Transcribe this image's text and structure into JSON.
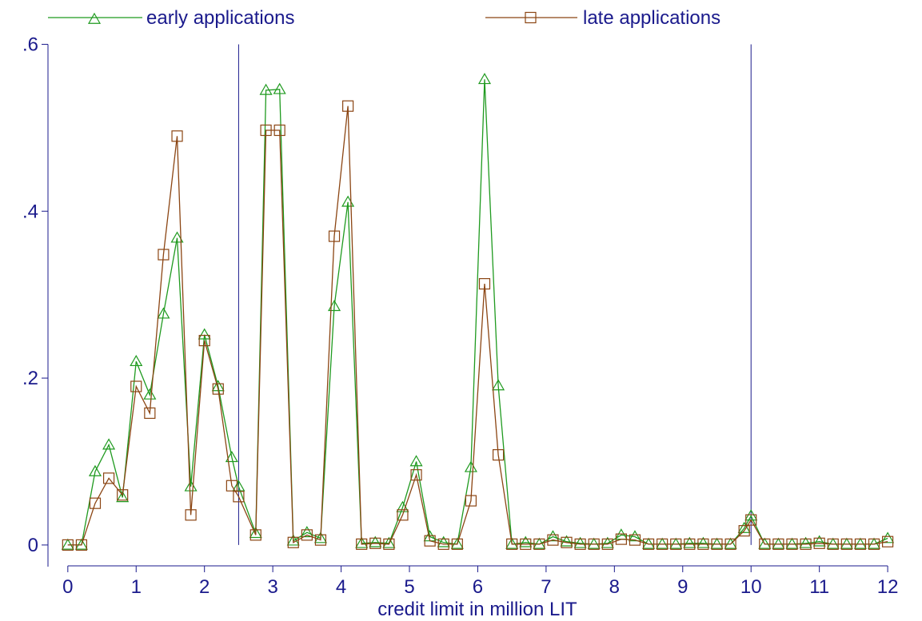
{
  "chart_data": {
    "type": "line",
    "xlabel": "credit limit in million LIT",
    "ylabel": "",
    "xlim": [
      -0.15,
      12.35
    ],
    "ylim": [
      -0.025,
      0.61
    ],
    "x_ticks": [
      "0",
      "1",
      "2",
      "3",
      "4",
      "5",
      "6",
      "7",
      "8",
      "9",
      "10",
      "11",
      "12"
    ],
    "y_ticks": [
      {
        "value": 0,
        "label": "0"
      },
      {
        "value": 0.2,
        "label": ".2"
      },
      {
        "value": 0.4,
        "label": ".4"
      },
      {
        "value": 0.6,
        "label": ".6"
      }
    ],
    "vertical_lines": [
      2.5,
      10
    ],
    "legend_position": "top",
    "colors": {
      "early": "#1f9a1f",
      "late": "#8b4513",
      "axis": "#1a1a8c"
    },
    "x": [
      0,
      0.2,
      0.4,
      0.6,
      0.8,
      1.0,
      1.2,
      1.4,
      1.6,
      1.8,
      2.0,
      2.2,
      2.4,
      2.5,
      2.75,
      2.9,
      3.1,
      3.3,
      3.5,
      3.7,
      3.9,
      4.1,
      4.3,
      4.5,
      4.7,
      4.9,
      5.1,
      5.3,
      5.5,
      5.7,
      5.9,
      6.1,
      6.3,
      6.5,
      6.7,
      6.9,
      7.1,
      7.3,
      7.5,
      7.7,
      7.9,
      8.1,
      8.3,
      8.5,
      8.7,
      8.9,
      9.1,
      9.3,
      9.5,
      9.7,
      9.9,
      10.0,
      10.2,
      10.4,
      10.6,
      10.8,
      11.0,
      11.2,
      11.4,
      11.6,
      11.8,
      12.0
    ],
    "series": [
      {
        "name": "early applications",
        "marker": "triangle",
        "values": [
          0,
          0,
          0.088,
          0.12,
          0.057,
          0.22,
          0.18,
          0.277,
          0.368,
          0.07,
          0.252,
          0.19,
          0.105,
          0.07,
          0.014,
          0.545,
          0.546,
          0.005,
          0.015,
          0.008,
          0.286,
          0.411,
          0.002,
          0.003,
          0.002,
          0.045,
          0.1,
          0.01,
          0.003,
          0.001,
          0.093,
          0.558,
          0.191,
          0.001,
          0.003,
          0.001,
          0.01,
          0.004,
          0.002,
          0.001,
          0.002,
          0.012,
          0.01,
          0.001,
          0.001,
          0.001,
          0.002,
          0.002,
          0.001,
          0.001,
          0.02,
          0.035,
          0.001,
          0.001,
          0.001,
          0.002,
          0.004,
          0.001,
          0.001,
          0.001,
          0.001,
          0.008
        ]
      },
      {
        "name": "late applications",
        "marker": "square",
        "values": [
          0,
          0,
          0.05,
          0.08,
          0.06,
          0.19,
          0.158,
          0.348,
          0.49,
          0.036,
          0.245,
          0.187,
          0.071,
          0.058,
          0.012,
          0.497,
          0.497,
          0.003,
          0.012,
          0.006,
          0.37,
          0.526,
          0.001,
          0.002,
          0.001,
          0.036,
          0.084,
          0.005,
          0.001,
          0.001,
          0.053,
          0.313,
          0.108,
          0.001,
          0.001,
          0.001,
          0.006,
          0.003,
          0.001,
          0.001,
          0.001,
          0.007,
          0.006,
          0.001,
          0.001,
          0.001,
          0.001,
          0.001,
          0.001,
          0.001,
          0.017,
          0.03,
          0.001,
          0.001,
          0.001,
          0.001,
          0.002,
          0.001,
          0.001,
          0.001,
          0.001,
          0.004
        ]
      }
    ]
  }
}
